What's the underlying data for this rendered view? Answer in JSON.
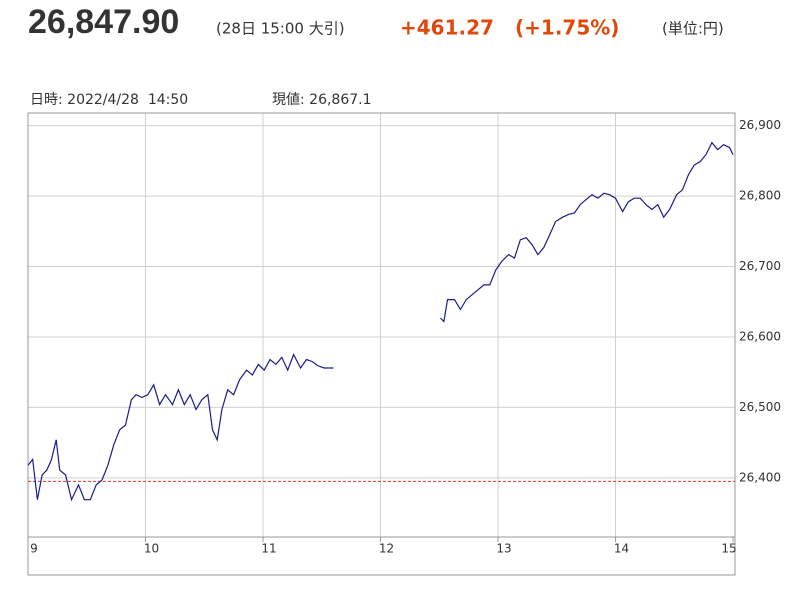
{
  "chart_data": {
    "type": "line",
    "price": "26,847.90",
    "price_note": "(28日 15:00 大引)",
    "change": "+461.27",
    "change_pct": "(+1.75%)",
    "unit": "(単位:円)",
    "info_time": "日時: 2022/4/28  14:50",
    "info_value": "現値: 26,867.1",
    "color": "#1c1c8a",
    "reference_value": 26395,
    "reference_color": "#e03030",
    "grid": true,
    "x": [
      9.0,
      9.04,
      9.08,
      9.12,
      9.16,
      9.2,
      9.24,
      9.27,
      9.32,
      9.37,
      9.43,
      9.48,
      9.53,
      9.58,
      9.63,
      9.68,
      9.73,
      9.78,
      9.83,
      9.88,
      9.92,
      9.97,
      10.02,
      10.07,
      10.12,
      10.17,
      10.23,
      10.28,
      10.33,
      10.38,
      10.43,
      10.48,
      10.53,
      10.57,
      10.61,
      10.65,
      10.7,
      10.75,
      10.8,
      10.86,
      10.91,
      10.96,
      11.01,
      11.06,
      11.11,
      11.16,
      11.21,
      11.26,
      11.32,
      11.37,
      11.42,
      11.47,
      11.52,
      11.6,
      12.0,
      12.51,
      12.54,
      12.57,
      12.63,
      12.68,
      12.73,
      12.78,
      12.83,
      12.88,
      12.93,
      12.98,
      13.03,
      13.09,
      13.14,
      13.19,
      13.24,
      13.29,
      13.34,
      13.39,
      13.44,
      13.49,
      13.55,
      13.6,
      13.65,
      13.7,
      13.75,
      13.8,
      13.85,
      13.9,
      13.95,
      14.0,
      14.06,
      14.11,
      14.16,
      14.21,
      14.26,
      14.31,
      14.36,
      14.41,
      14.46,
      14.52,
      14.57,
      14.62,
      14.67,
      14.72,
      14.77,
      14.82,
      14.87,
      14.92,
      14.97,
      15.0
    ],
    "values": [
      26418,
      26426,
      26369,
      26404,
      26411,
      26426,
      26454,
      26411,
      26404,
      26369,
      26390,
      26369,
      26369,
      26390,
      26397,
      26418,
      26447,
      26468,
      26475,
      26511,
      26518,
      26514,
      26518,
      26532,
      26504,
      26518,
      26504,
      26525,
      26504,
      26518,
      26497,
      26511,
      26518,
      26468,
      26454,
      26497,
      26525,
      26518,
      26539,
      26553,
      26546,
      26561,
      26553,
      26568,
      26561,
      26571,
      26553,
      26575,
      26556,
      26568,
      26565,
      26559,
      26556,
      26556,
      null,
      26627,
      26622,
      26653,
      26653,
      26639,
      26653,
      26660,
      26667,
      26674,
      26674,
      26695,
      26707,
      26717,
      26712,
      26738,
      26741,
      26731,
      26717,
      26727,
      26745,
      26764,
      26770,
      26774,
      26776,
      26788,
      26795,
      26802,
      26797,
      26804,
      26802,
      26797,
      26778,
      26792,
      26797,
      26797,
      26788,
      26781,
      26788,
      26770,
      26781,
      26802,
      26809,
      26830,
      26844,
      26849,
      26859,
      26876,
      26866,
      26873,
      26869,
      26859
    ],
    "xlim": [
      9,
      15
    ],
    "xticks": [
      9,
      10,
      11,
      12,
      13,
      14,
      15
    ],
    "ylim": [
      26316,
      26918
    ],
    "yticks": [
      {
        "value": 26400,
        "label": "26,400"
      },
      {
        "value": 26500,
        "label": "26,500"
      },
      {
        "value": 26600,
        "label": "26,600"
      },
      {
        "value": 26700,
        "label": "26,700"
      },
      {
        "value": 26800,
        "label": "26,800"
      },
      {
        "value": 26900,
        "label": "26,900"
      }
    ]
  }
}
